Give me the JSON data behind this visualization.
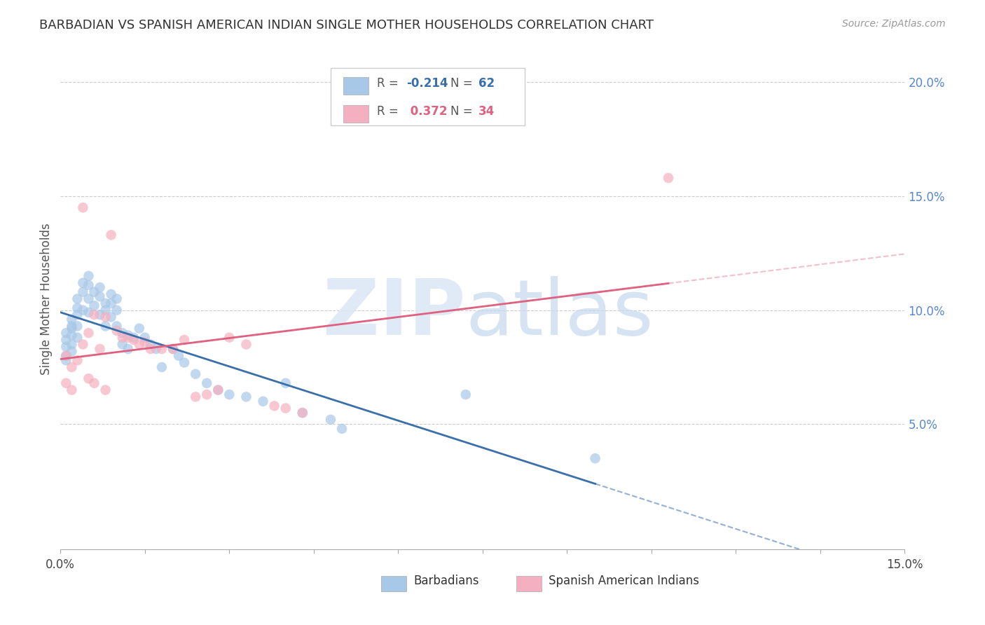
{
  "title": "BARBADIAN VS SPANISH AMERICAN INDIAN SINGLE MOTHER HOUSEHOLDS CORRELATION CHART",
  "source": "Source: ZipAtlas.com",
  "ylabel": "Single Mother Households",
  "xlim": [
    0.0,
    0.15
  ],
  "ylim": [
    -0.005,
    0.215
  ],
  "blue_R": -0.214,
  "blue_N": 62,
  "pink_R": 0.372,
  "pink_N": 34,
  "blue_label": "Barbadians",
  "pink_label": "Spanish American Indians",
  "blue_color": "#a8c8e8",
  "pink_color": "#f4b0c0",
  "blue_line_color": "#3a6faa",
  "pink_line_color": "#e06080",
  "legend_R_blue": "-0.214",
  "legend_N_blue": "62",
  "legend_R_pink": "0.372",
  "legend_N_pink": "34",
  "blue_scatter_x": [
    0.001,
    0.001,
    0.001,
    0.001,
    0.001,
    0.002,
    0.002,
    0.002,
    0.002,
    0.002,
    0.002,
    0.003,
    0.003,
    0.003,
    0.003,
    0.003,
    0.004,
    0.004,
    0.004,
    0.005,
    0.005,
    0.005,
    0.005,
    0.006,
    0.006,
    0.007,
    0.007,
    0.007,
    0.008,
    0.008,
    0.008,
    0.009,
    0.009,
    0.009,
    0.01,
    0.01,
    0.01,
    0.011,
    0.011,
    0.012,
    0.012,
    0.013,
    0.014,
    0.015,
    0.016,
    0.017,
    0.018,
    0.02,
    0.021,
    0.022,
    0.024,
    0.026,
    0.028,
    0.03,
    0.033,
    0.036,
    0.04,
    0.043,
    0.048,
    0.05,
    0.072,
    0.095
  ],
  "blue_scatter_y": [
    0.09,
    0.087,
    0.084,
    0.08,
    0.078,
    0.092,
    0.089,
    0.085,
    0.082,
    0.096,
    0.093,
    0.105,
    0.101,
    0.098,
    0.093,
    0.088,
    0.112,
    0.108,
    0.1,
    0.115,
    0.111,
    0.105,
    0.099,
    0.108,
    0.102,
    0.11,
    0.106,
    0.098,
    0.103,
    0.1,
    0.093,
    0.107,
    0.103,
    0.097,
    0.105,
    0.1,
    0.093,
    0.09,
    0.085,
    0.089,
    0.083,
    0.088,
    0.092,
    0.088,
    0.085,
    0.083,
    0.075,
    0.083,
    0.08,
    0.077,
    0.072,
    0.068,
    0.065,
    0.063,
    0.062,
    0.06,
    0.068,
    0.055,
    0.052,
    0.048,
    0.063,
    0.035
  ],
  "pink_scatter_x": [
    0.001,
    0.001,
    0.002,
    0.002,
    0.003,
    0.004,
    0.004,
    0.005,
    0.005,
    0.006,
    0.006,
    0.007,
    0.008,
    0.008,
    0.009,
    0.01,
    0.011,
    0.012,
    0.013,
    0.014,
    0.015,
    0.016,
    0.018,
    0.02,
    0.022,
    0.024,
    0.026,
    0.028,
    0.03,
    0.033,
    0.038,
    0.04,
    0.043,
    0.108
  ],
  "pink_scatter_y": [
    0.08,
    0.068,
    0.075,
    0.065,
    0.078,
    0.085,
    0.145,
    0.09,
    0.07,
    0.098,
    0.068,
    0.083,
    0.097,
    0.065,
    0.133,
    0.091,
    0.088,
    0.088,
    0.087,
    0.085,
    0.086,
    0.083,
    0.083,
    0.083,
    0.087,
    0.062,
    0.063,
    0.065,
    0.088,
    0.085,
    0.058,
    0.057,
    0.055,
    0.158
  ],
  "ytick_vals": [
    0.05,
    0.1,
    0.15,
    0.2
  ],
  "ytick_labels": [
    "5.0%",
    "10.0%",
    "15.0%",
    "20.0%"
  ],
  "xtick_edge_left": "0.0%",
  "xtick_edge_right": "15.0%"
}
